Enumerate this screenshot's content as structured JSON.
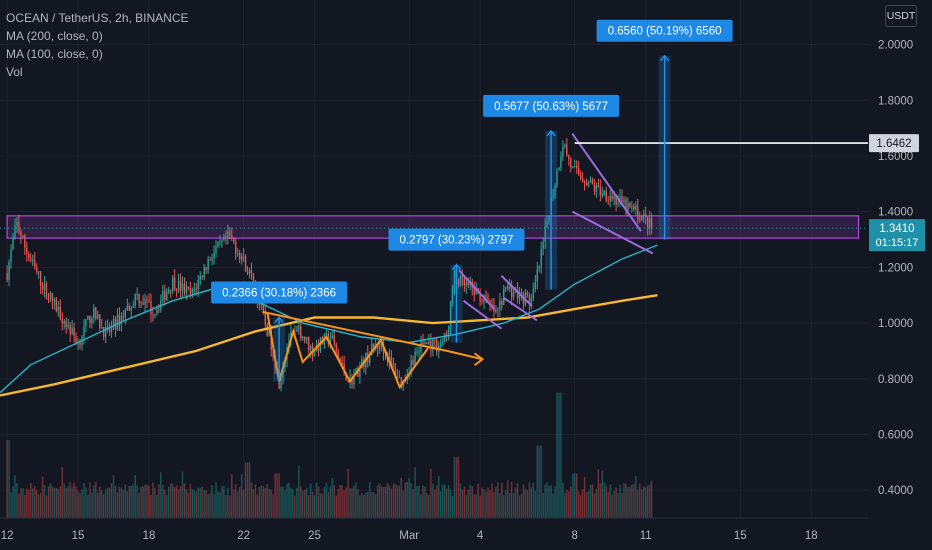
{
  "header": {
    "symbol_line": "OCEAN / TetherUS, 2h, BINANCE",
    "indicators": [
      "MA (200, close, 0)",
      "MA (100, close, 0)",
      "Vol"
    ],
    "currency": "USDT"
  },
  "colors": {
    "background": "#131722",
    "grid": "#1e222d",
    "axis_text": "#b2b5be",
    "candle_up": "#26a69a",
    "candle_down": "#ef5350",
    "ma_200": "#f7b731",
    "ma_100": "#26b5c8",
    "pattern_orange": "#f7931a",
    "pattern_violet": "#9c6bde",
    "zone": "#b04ad8",
    "measure": "#2196f3",
    "price_label": "#1e90a8"
  },
  "chart_data": {
    "type": "candlestick",
    "pair": "OCEAN / TetherUS",
    "interval": "2h",
    "exchange": "BINANCE",
    "y_ticks": [
      "2.0000",
      "1.8000",
      "1.6000",
      "1.4000",
      "1.2000",
      "1.0000",
      "0.8000",
      "0.6000",
      "0.4000"
    ],
    "y_tick_values": [
      2.0,
      1.8,
      1.6,
      1.4,
      1.2,
      1.0,
      0.8,
      0.6,
      0.4
    ],
    "ylim": [
      0.3,
      2.16
    ],
    "x_ticks": [
      {
        "label": "12",
        "day": 12
      },
      {
        "label": "15",
        "day": 15
      },
      {
        "label": "18",
        "day": 18
      },
      {
        "label": "22",
        "day": 22
      },
      {
        "label": "25",
        "day": 25
      },
      {
        "label": "Mar",
        "day": 29
      },
      {
        "label": "4",
        "day": 32
      },
      {
        "label": "8",
        "day": 36
      },
      {
        "label": "11",
        "day": 39
      },
      {
        "label": "15",
        "day": 43
      },
      {
        "label": "18",
        "day": 46
      }
    ],
    "xlim": [
      11.7,
      48.4
    ],
    "price_path": [
      [
        12.0,
        1.18
      ],
      [
        12.4,
        1.36
      ],
      [
        12.9,
        1.24
      ],
      [
        13.6,
        1.12
      ],
      [
        14.5,
        1.0
      ],
      [
        15.0,
        0.93
      ],
      [
        15.6,
        1.04
      ],
      [
        16.2,
        0.96
      ],
      [
        16.8,
        1.02
      ],
      [
        17.5,
        1.1
      ],
      [
        18.2,
        1.04
      ],
      [
        19.0,
        1.15
      ],
      [
        19.8,
        1.1
      ],
      [
        20.6,
        1.24
      ],
      [
        21.4,
        1.31
      ],
      [
        21.9,
        1.24
      ],
      [
        22.4,
        1.15
      ],
      [
        22.8,
        1.03
      ],
      [
        23.2,
        0.92
      ],
      [
        23.5,
        0.79
      ],
      [
        23.9,
        0.94
      ],
      [
        24.4,
        0.97
      ],
      [
        24.9,
        0.9
      ],
      [
        25.3,
        0.93
      ],
      [
        25.7,
        0.95
      ],
      [
        26.1,
        0.85
      ],
      [
        26.5,
        0.79
      ],
      [
        26.9,
        0.84
      ],
      [
        27.4,
        0.9
      ],
      [
        27.8,
        0.93
      ],
      [
        28.3,
        0.84
      ],
      [
        28.7,
        0.78
      ],
      [
        29.2,
        0.88
      ],
      [
        29.6,
        0.93
      ],
      [
        30.2,
        0.92
      ],
      [
        30.6,
        0.95
      ],
      [
        30.9,
        1.17
      ],
      [
        31.2,
        1.14
      ],
      [
        31.7,
        1.12
      ],
      [
        32.2,
        1.08
      ],
      [
        32.7,
        1.03
      ],
      [
        33.1,
        1.13
      ],
      [
        33.6,
        1.1
      ],
      [
        34.2,
        1.08
      ],
      [
        34.6,
        1.25
      ],
      [
        34.9,
        1.4
      ],
      [
        35.2,
        1.52
      ],
      [
        35.5,
        1.65
      ],
      [
        35.9,
        1.55
      ],
      [
        36.4,
        1.52
      ],
      [
        36.9,
        1.48
      ],
      [
        37.5,
        1.46
      ],
      [
        38.1,
        1.42
      ],
      [
        38.6,
        1.4
      ],
      [
        39.0,
        1.37
      ],
      [
        39.3,
        1.34
      ]
    ],
    "volume_spikes": [
      [
        12.0,
        0.58
      ],
      [
        22.2,
        0.5
      ],
      [
        23.4,
        0.46
      ],
      [
        31.0,
        0.52
      ],
      [
        34.5,
        0.56
      ],
      [
        35.3,
        0.75
      ],
      [
        36.0,
        0.46
      ]
    ],
    "series": [
      {
        "name": "MA (200, close, 0)",
        "color": "#f7b731",
        "points": [
          [
            11.7,
            0.74
          ],
          [
            14,
            0.78
          ],
          [
            17,
            0.84
          ],
          [
            20,
            0.9
          ],
          [
            22.5,
            0.97
          ],
          [
            25,
            1.02
          ],
          [
            27.5,
            1.02
          ],
          [
            30,
            1.0
          ],
          [
            32,
            1.01
          ],
          [
            34,
            1.02
          ],
          [
            36,
            1.05
          ],
          [
            38,
            1.08
          ],
          [
            39.5,
            1.1
          ]
        ]
      },
      {
        "name": "MA (100, close, 0)",
        "color": "#26b5c8",
        "points": [
          [
            11.7,
            0.75
          ],
          [
            13,
            0.85
          ],
          [
            15,
            0.93
          ],
          [
            17,
            1.01
          ],
          [
            19,
            1.08
          ],
          [
            21,
            1.13
          ],
          [
            22.5,
            1.08
          ],
          [
            24.5,
            1.0
          ],
          [
            27,
            0.95
          ],
          [
            29,
            0.93
          ],
          [
            31,
            0.96
          ],
          [
            33,
            1.0
          ],
          [
            34.5,
            1.05
          ],
          [
            36,
            1.14
          ],
          [
            38,
            1.23
          ],
          [
            39.5,
            1.28
          ]
        ]
      }
    ],
    "drawings": {
      "zone": {
        "top": 1.385,
        "bottom": 1.305,
        "x_start": 12.0,
        "x_end": 48.0
      },
      "horizontal_line": {
        "price": 1.6462,
        "x_start": 36.0
      },
      "ranges": [
        {
          "label": "0.2366 (30.18%) 2366",
          "x": 23.5,
          "from": 0.79,
          "to": 1.02
        },
        {
          "label": "0.2797 (30.23%) 2797",
          "x": 31.0,
          "from": 0.93,
          "to": 1.21
        },
        {
          "label": "0.5677 (50.63%) 5677",
          "x": 35.0,
          "from": 1.12,
          "to": 1.69
        },
        {
          "label": "0.6560 (50.19%) 6560",
          "x": 39.8,
          "from": 1.3,
          "to": 1.96
        }
      ],
      "orange_pattern": [
        [
          23.0,
          1.04
        ],
        [
          23.5,
          0.79
        ],
        [
          24.1,
          0.97
        ],
        [
          24.5,
          0.86
        ],
        [
          25.5,
          0.95
        ],
        [
          26.5,
          0.79
        ],
        [
          27.8,
          0.94
        ],
        [
          28.6,
          0.77
        ],
        [
          29.8,
          0.91
        ]
      ],
      "orange_neckline": [
        [
          22.8,
          1.04
        ],
        [
          30.6,
          0.9
        ]
      ],
      "orange_arrow": [
        [
          30.6,
          0.9
        ],
        [
          32.1,
          0.87
        ]
      ],
      "violet_flags": [
        [
          [
            31.1,
            1.19
          ],
          [
            32.6,
            1.05
          ]
        ],
        [
          [
            31.3,
            1.08
          ],
          [
            32.9,
            0.98
          ]
        ],
        [
          [
            32.9,
            1.17
          ],
          [
            34.2,
            1.06
          ]
        ],
        [
          [
            33.0,
            1.09
          ],
          [
            34.4,
            1.01
          ]
        ],
        [
          [
            35.9,
            1.68
          ],
          [
            38.8,
            1.33
          ]
        ],
        [
          [
            35.9,
            1.4
          ],
          [
            39.3,
            1.25
          ]
        ]
      ]
    },
    "price_labels": [
      {
        "text": "1.6462",
        "value": 1.6462,
        "kind": "line"
      },
      {
        "text": "1.3410",
        "sub": "01:15:17",
        "value": 1.341,
        "kind": "last"
      }
    ]
  }
}
